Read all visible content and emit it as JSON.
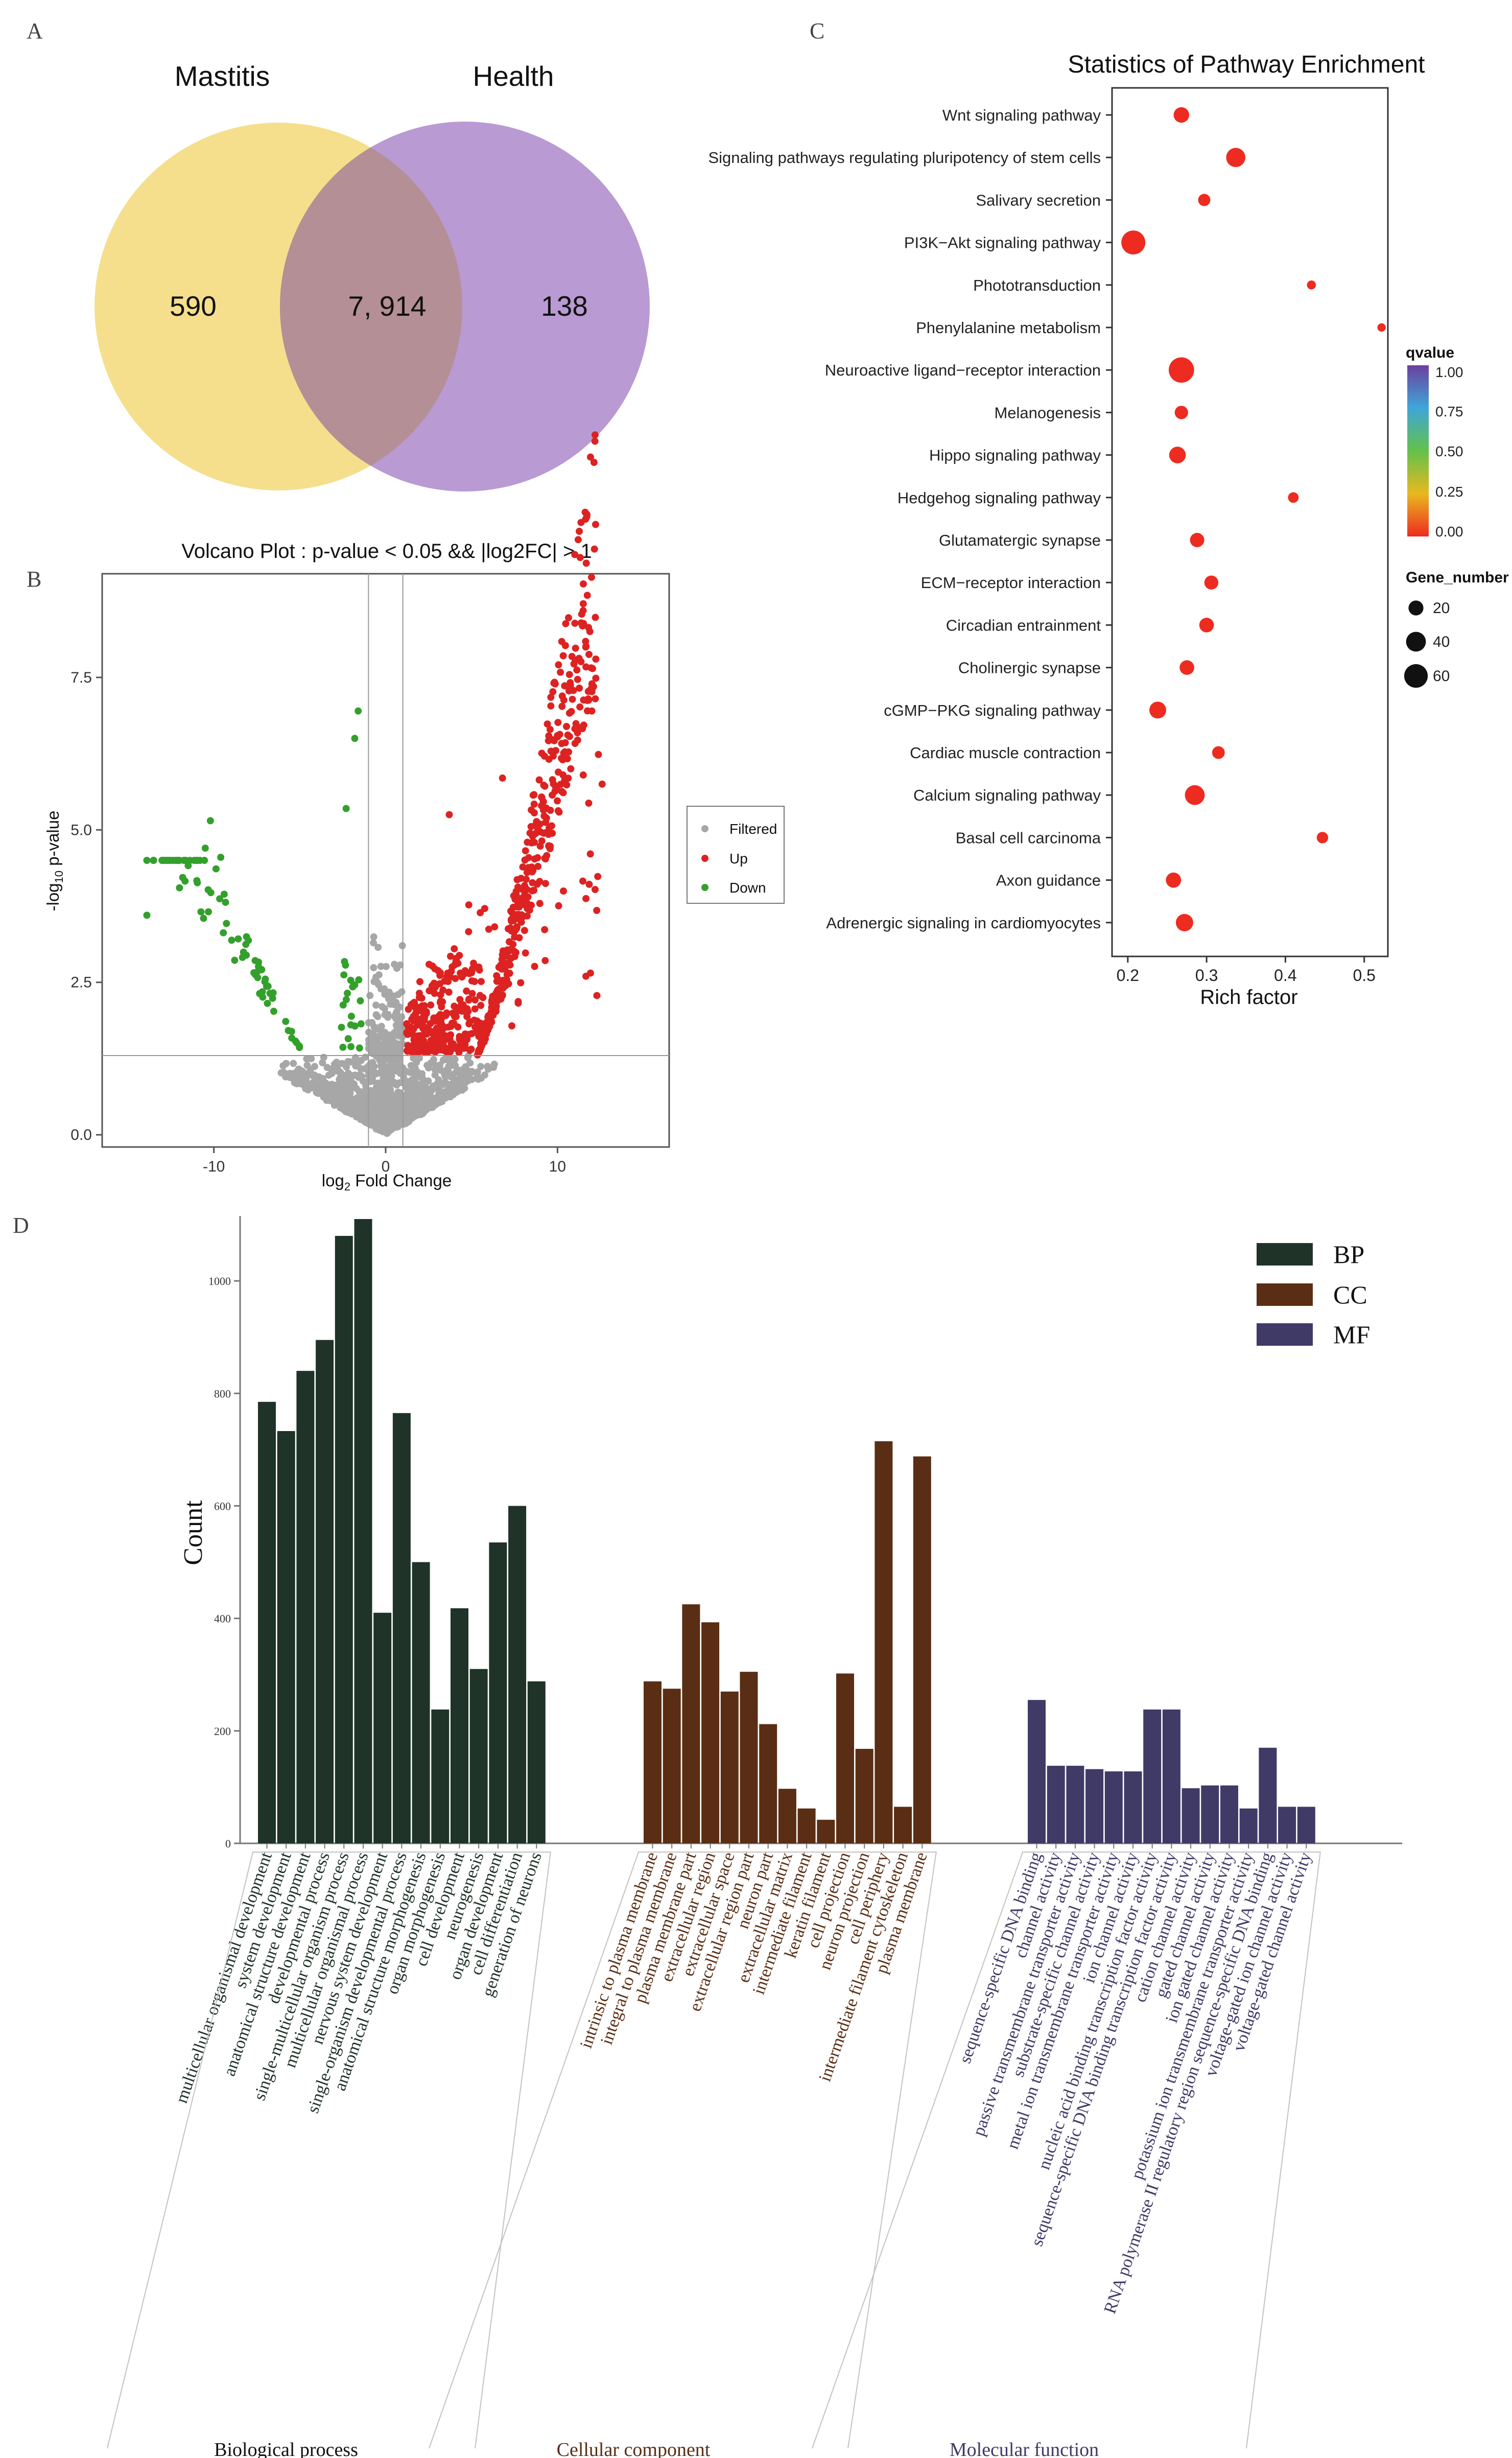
{
  "panel_labels": {
    "a": "A",
    "b": "B",
    "c": "C",
    "d": "D"
  },
  "colors": {
    "venn_left": "#f5df8c",
    "venn_right": "#b99ad3",
    "venn_overlap": "#b48f95",
    "up": "#dd2222",
    "down": "#33a02c",
    "filtered": "#a7a7a7",
    "bp": "#1f3328",
    "cc": "#5a2e14",
    "mf": "#3f3a66",
    "dot": "#ee2b20"
  },
  "chart_data": [
    {
      "type": "venn",
      "sets": [
        "Mastitis",
        "Health"
      ],
      "only_left": "590",
      "overlap": "7, 914",
      "only_right": "138"
    },
    {
      "type": "scatter",
      "title": "Volcano Plot : p-value < 0.05 && |log2FC| > 1",
      "xlabel_prefix": "log",
      "xlabel_sub": "2",
      "xlabel_suffix": " Fold Change",
      "ylabel_prefix": "-log",
      "ylabel_sub": "10",
      "ylabel_suffix": " p-value",
      "xlim": [
        -16.5,
        16.5
      ],
      "ylim": [
        -0.2,
        9.2
      ],
      "xticks": [
        -10,
        0,
        10
      ],
      "xtick_labels": [
        "-10",
        "0",
        "10"
      ],
      "yticks": [
        0,
        2.5,
        5,
        7.5
      ],
      "ytick_labels": [
        "0.0",
        "2.5",
        "5.0",
        "7.5"
      ],
      "fc_threshold": 1,
      "p_threshold_line": 1.3,
      "legend": [
        "Filtered",
        "Up",
        "Down"
      ]
    },
    {
      "type": "scatter",
      "title": "Statistics of Pathway Enrichment",
      "xlabel": "Rich factor",
      "xlim": [
        0.18,
        0.53
      ],
      "xticks": [
        0.2,
        0.3,
        0.4,
        0.5
      ],
      "xtick_labels": [
        "0.2",
        "0.3",
        "0.4",
        "0.5"
      ],
      "pathways": [
        {
          "name": "Wnt signaling pathway",
          "rich_factor": 0.268,
          "gene_number": 22,
          "qvalue": 0.0
        },
        {
          "name": "Signaling pathways regulating pluripotency of stem cells",
          "rich_factor": 0.337,
          "gene_number": 37,
          "qvalue": 0.0
        },
        {
          "name": "Salivary secretion",
          "rich_factor": 0.297,
          "gene_number": 12,
          "qvalue": 0.0
        },
        {
          "name": "PI3K−Akt signaling pathway",
          "rich_factor": 0.207,
          "gene_number": 62,
          "qvalue": 0.0
        },
        {
          "name": "Phototransduction",
          "rich_factor": 0.433,
          "gene_number": 5,
          "qvalue": 0.0
        },
        {
          "name": "Phenylalanine metabolism",
          "rich_factor": 0.522,
          "gene_number": 4,
          "qvalue": 0.0
        },
        {
          "name": "Neuroactive ligand−receptor interaction",
          "rich_factor": 0.268,
          "gene_number": 70,
          "qvalue": 0.0
        },
        {
          "name": "Melanogenesis",
          "rich_factor": 0.268,
          "gene_number": 15,
          "qvalue": 0.0
        },
        {
          "name": "Hippo signaling pathway",
          "rich_factor": 0.263,
          "gene_number": 26,
          "qvalue": 0.0
        },
        {
          "name": "Hedgehog signaling pathway",
          "rich_factor": 0.41,
          "gene_number": 8,
          "qvalue": 0.0
        },
        {
          "name": "Glutamatergic synapse",
          "rich_factor": 0.288,
          "gene_number": 18,
          "qvalue": 0.0
        },
        {
          "name": "ECM−receptor interaction",
          "rich_factor": 0.306,
          "gene_number": 17,
          "qvalue": 0.0
        },
        {
          "name": "Circadian entrainment",
          "rich_factor": 0.3,
          "gene_number": 19,
          "qvalue": 0.0
        },
        {
          "name": "Cholinergic synapse",
          "rich_factor": 0.275,
          "gene_number": 19,
          "qvalue": 0.0
        },
        {
          "name": "cGMP−PKG signaling pathway",
          "rich_factor": 0.238,
          "gene_number": 27,
          "qvalue": 0.0
        },
        {
          "name": "Cardiac muscle contraction",
          "rich_factor": 0.315,
          "gene_number": 13,
          "qvalue": 0.0
        },
        {
          "name": "Calcium signaling pathway",
          "rich_factor": 0.285,
          "gene_number": 40,
          "qvalue": 0.0
        },
        {
          "name": "Basal cell carcinoma",
          "rich_factor": 0.447,
          "gene_number": 10,
          "qvalue": 0.0
        },
        {
          "name": "Axon guidance",
          "rich_factor": 0.258,
          "gene_number": 21,
          "qvalue": 0.0
        },
        {
          "name": "Adrenergic signaling in cardiomyocytes",
          "rich_factor": 0.272,
          "gene_number": 29,
          "qvalue": 0.0
        }
      ],
      "qvalue_legend": {
        "title": "qvalue",
        "ticks": [
          "1.00",
          "0.75",
          "0.50",
          "0.25",
          "0.00"
        ]
      },
      "gene_legend": {
        "title": "Gene_number",
        "values": [
          20,
          40,
          60
        ],
        "labels": [
          "20",
          "40",
          "60"
        ]
      }
    },
    {
      "type": "bar",
      "ylabel": "Count",
      "ylim": [
        0,
        1110
      ],
      "yticks": [
        0,
        200,
        400,
        600,
        800,
        1000
      ],
      "ytick_labels": [
        "0",
        "200",
        "400",
        "600",
        "800",
        "1000"
      ],
      "legend": [
        "BP",
        "CC",
        "MF"
      ],
      "groups": [
        {
          "key": "bp",
          "name": "Biological process",
          "categories": [
            "multicellular organismal development",
            "system development",
            "anatomical structure development",
            "developmental process",
            "single-multicellular organism process",
            "multicellular organismal process",
            "nervous system development",
            "single-organism developmental process",
            "anatomical structure morphogenesis",
            "organ morphogenesis",
            "cell development",
            "neurogenesis",
            "organ development",
            "cell differentiation",
            "generation of neurons"
          ],
          "values": [
            785,
            733,
            840,
            895,
            1080,
            1110,
            410,
            765,
            500,
            238,
            418,
            310,
            535,
            600,
            288
          ]
        },
        {
          "key": "cc",
          "name": "Cellular component",
          "categories": [
            "intrinsic to plasma membrane",
            "integral to plasma membrane",
            "plasma membrane part",
            "extracellular region",
            "extracellular space",
            "extracellular region part",
            "neuron part",
            "extracellular matrix",
            "intermediate filament",
            "keratin filament",
            "cell projection",
            "neuron projection",
            "cell periphery",
            "intermediate filament cytoskeleton",
            "plasma membrane"
          ],
          "values": [
            288,
            275,
            425,
            393,
            270,
            305,
            212,
            97,
            62,
            42,
            302,
            168,
            715,
            65,
            688
          ]
        },
        {
          "key": "mf",
          "name": "Molecular function",
          "categories": [
            "sequence-specific DNA binding",
            "channel activity",
            "passive transmembrane transporter activity",
            "substrate-specific channel activity",
            "metal ion transmembrane transporter activity",
            "ion channel activity",
            "nucleic acid binding transcription factor activity",
            "sequence-specific DNA binding transcription factor activity",
            "cation channel activity",
            "gated channel activity",
            "ion gated channel activity",
            "potassium ion transmembrane transporter activity",
            "RNA polymerase II regulatory region sequence-specific DNA binding",
            "voltage-gated ion channel activity",
            "voltage-gated channel activity"
          ],
          "values": [
            255,
            138,
            138,
            132,
            128,
            128,
            238,
            238,
            98,
            103,
            103,
            62,
            170,
            65,
            65
          ]
        }
      ]
    }
  ]
}
